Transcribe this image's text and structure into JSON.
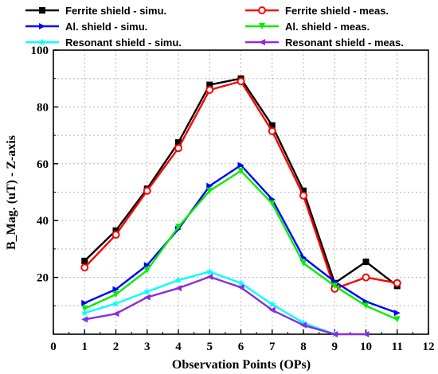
{
  "chart_data": {
    "type": "line",
    "title": "",
    "xlabel": "Observation Points (OPs)",
    "ylabel": "B_Mag. (uT) - Z-axis",
    "xlim": [
      0,
      12
    ],
    "ylim": [
      0,
      100
    ],
    "xticks": [
      0,
      1,
      2,
      3,
      4,
      5,
      6,
      7,
      8,
      9,
      10,
      11,
      12
    ],
    "yticks": [
      20,
      40,
      60,
      80,
      100
    ],
    "grid": true,
    "legend_position": "top",
    "series": [
      {
        "name": "Ferrite shield - simu.",
        "color": "#000000",
        "marker": "square",
        "x": [
          1,
          2,
          3,
          4,
          5,
          6,
          7,
          8,
          9,
          10,
          11
        ],
        "values": [
          25.8,
          36.5,
          51.2,
          67.5,
          87.8,
          90.0,
          73.5,
          50.5,
          18.0,
          25.5,
          17.0
        ]
      },
      {
        "name": "Ferrite shield - meas.",
        "color": "#ff0000",
        "marker": "circle",
        "x": [
          1,
          2,
          3,
          4,
          5,
          6,
          7,
          8,
          9,
          10,
          11
        ],
        "values": [
          23.5,
          35.0,
          50.5,
          65.5,
          86.0,
          89.0,
          71.5,
          48.8,
          16.0,
          20.0,
          18.0
        ]
      },
      {
        "name": "Al. shield - simu.",
        "color": "#0000ff",
        "marker": "triangle-right",
        "x": [
          1,
          2,
          3,
          4,
          5,
          6,
          7,
          8,
          9,
          10,
          11
        ],
        "values": [
          11.0,
          15.8,
          24.3,
          37.0,
          52.2,
          59.5,
          47.5,
          27.0,
          18.5,
          11.5,
          7.5
        ]
      },
      {
        "name": "Al. shield - meas.",
        "color": "#00ee00",
        "marker": "triangle-down",
        "x": [
          1,
          2,
          3,
          4,
          5,
          6,
          7,
          8,
          9,
          10,
          11
        ],
        "values": [
          9.0,
          14.0,
          22.5,
          37.8,
          50.5,
          57.5,
          46.0,
          25.0,
          17.0,
          10.0,
          5.2
        ]
      },
      {
        "name": "Resonant shield - simu.",
        "color": "#00ffff",
        "marker": "star",
        "x": [
          1,
          2,
          3,
          4,
          5,
          6,
          7,
          8,
          9
        ],
        "values": [
          7.5,
          10.8,
          15.0,
          19.0,
          22.0,
          18.0,
          10.5,
          4.0,
          0.0
        ]
      },
      {
        "name": "Resonant shield - meas.",
        "color": "#8a2be2",
        "marker": "triangle-left",
        "x": [
          1,
          2,
          3,
          4,
          5,
          6,
          7,
          8,
          9,
          10
        ],
        "values": [
          5.2,
          7.2,
          13.0,
          16.2,
          20.2,
          16.5,
          8.5,
          3.2,
          0.0,
          0.0
        ]
      }
    ]
  }
}
